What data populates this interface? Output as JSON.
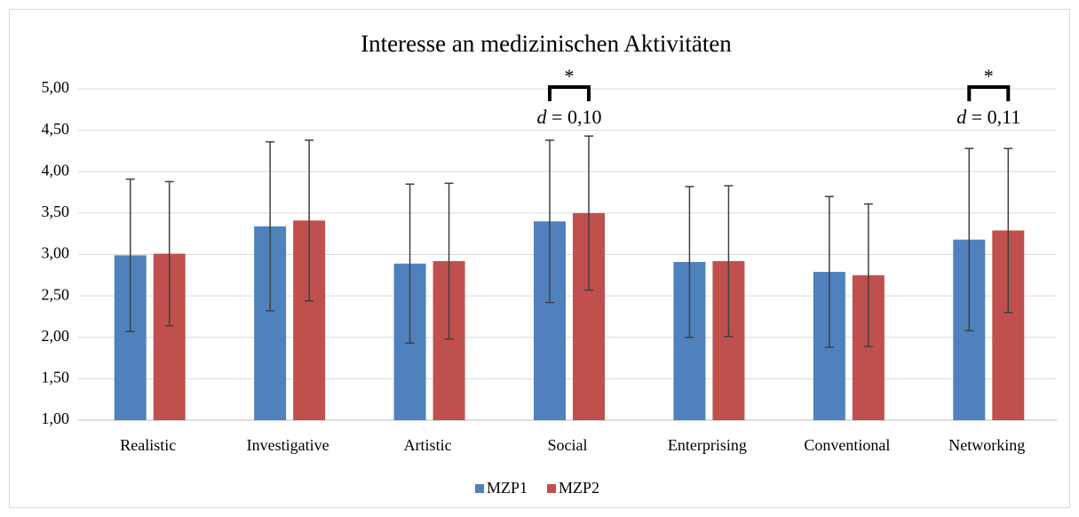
{
  "chart_data": {
    "type": "bar",
    "title": "Interesse an medizinischen Aktivitäten",
    "categories": [
      "Realistic",
      "Investigative",
      "Artistic",
      "Social",
      "Enterprising",
      "Conventional",
      "Networking"
    ],
    "series": [
      {
        "name": "MZP1",
        "color": "#4f81bd",
        "values": [
          2.99,
          3.34,
          2.89,
          3.4,
          2.91,
          2.79,
          3.18
        ],
        "errors": [
          0.92,
          1.02,
          0.96,
          0.98,
          0.91,
          0.91,
          1.1
        ]
      },
      {
        "name": "MZP2",
        "color": "#c0504d",
        "values": [
          3.01,
          3.41,
          2.92,
          3.5,
          2.92,
          2.75,
          3.29
        ],
        "errors": [
          0.87,
          0.97,
          0.94,
          0.93,
          0.91,
          0.86,
          0.99
        ]
      }
    ],
    "ylim": [
      1,
      5
    ],
    "yticks": [
      {
        "value": 1,
        "label": "1,00"
      },
      {
        "value": 1.5,
        "label": "1,50"
      },
      {
        "value": 2,
        "label": "2,00"
      },
      {
        "value": 2.5,
        "label": "2,50"
      },
      {
        "value": 3,
        "label": "3,00"
      },
      {
        "value": 3.5,
        "label": "3,50"
      },
      {
        "value": 4,
        "label": "4,00"
      },
      {
        "value": 4.5,
        "label": "4,50"
      },
      {
        "value": 5,
        "label": "5,00"
      }
    ],
    "grid": true,
    "legend": "bottom",
    "annotations": [
      {
        "category": "Social",
        "star": "*",
        "symbol": "d",
        "text": " = 0,10"
      },
      {
        "category": "Networking",
        "star": "*",
        "symbol": "d",
        "text": " = 0,11"
      }
    ]
  }
}
